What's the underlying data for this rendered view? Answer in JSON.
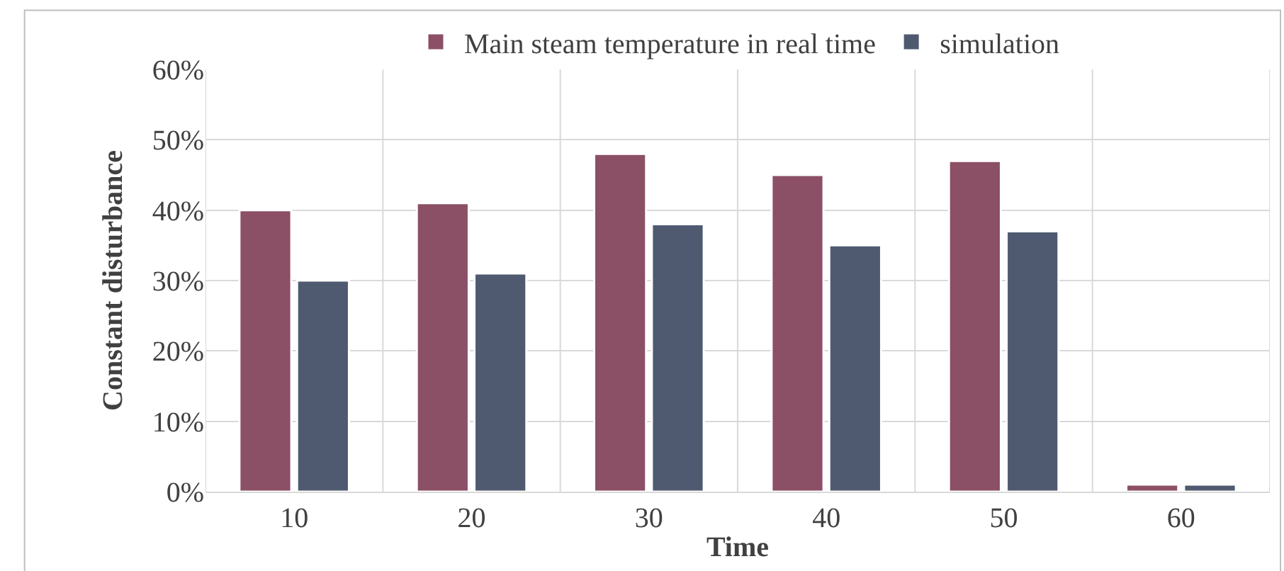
{
  "chart_data": {
    "type": "bar",
    "xlabel": "Time",
    "ylabel": "Constant disturbance",
    "categories": [
      "10",
      "20",
      "30",
      "40",
      "50",
      "60"
    ],
    "series": [
      {
        "name": "Main steam temperature in real time",
        "color": "#8b4f66",
        "values": [
          40,
          41,
          48,
          45,
          47,
          1
        ]
      },
      {
        "name": "simulation",
        "color": "#4f5a70",
        "values": [
          30,
          31,
          38,
          35,
          37,
          1
        ]
      }
    ],
    "ylim": [
      0,
      60
    ],
    "yticks": [
      {
        "value": 0,
        "label": "0%"
      },
      {
        "value": 10,
        "label": "10%"
      },
      {
        "value": 20,
        "label": "20%"
      },
      {
        "value": 30,
        "label": "30%"
      },
      {
        "value": 40,
        "label": "40%"
      },
      {
        "value": 50,
        "label": "50%"
      },
      {
        "value": 60,
        "label": "60%"
      }
    ],
    "grid": true,
    "legend": "top"
  }
}
